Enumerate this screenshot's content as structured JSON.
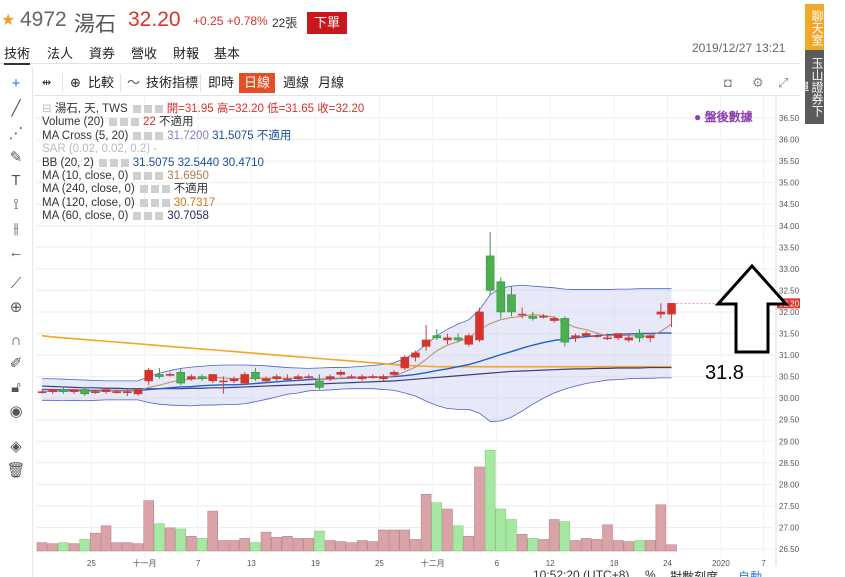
{
  "header": {
    "code": "4972",
    "name": "湯石",
    "price": "32.20",
    "change": "+0.25 +0.78%",
    "volume": "22張",
    "order_button": "下單",
    "datetime": "2019/12/27 13:21"
  },
  "nav": [
    "技術",
    "法人",
    "資券",
    "營收",
    "財報",
    "基本"
  ],
  "side_tabs": {
    "chat": "聊天室",
    "broker": "玉山證券下單"
  },
  "toolbar": {
    "compare": "比較",
    "indicators": "技術指標",
    "periods": [
      "即時",
      "日線",
      "週線",
      "月線"
    ],
    "active_period": "日線"
  },
  "legend": {
    "symbol": "湯石, 天, TWS",
    "ohlc": "開=31.95 高=32.20 低=31.65 收=32.20",
    "volume": {
      "label": "Volume (20)",
      "v1": "22",
      "v2": "不適用"
    },
    "ma_cross": {
      "label": "MA Cross (5, 20)",
      "v1": "31.7200",
      "v2": "31.5075",
      "v3": "不適用"
    },
    "sar": {
      "label": "SAR (0.02, 0.02, 0.2)"
    },
    "bb": {
      "label": "BB (20, 2)",
      "v1": "31.5075",
      "v2": "32.5440",
      "v3": "30.4710"
    },
    "ma10": {
      "label": "MA (10, close, 0)",
      "v": "31.6950"
    },
    "ma240": {
      "label": "MA (240, close, 0)",
      "v": "不適用"
    },
    "ma120": {
      "label": "MA (120, close, 0)",
      "v": "30.7317"
    },
    "ma60": {
      "label": "MA (60, close, 0)",
      "v": "30.7058"
    }
  },
  "after_hours": "盤後數據",
  "annotation": "31.8",
  "footer": {
    "time": "10:52:20 (UTC+8)",
    "pct": "%",
    "log": "對數刻度",
    "auto": "自動"
  },
  "chart_data": {
    "type": "candlestick",
    "price_axis": [
      "36.50",
      "36.00",
      "35.50",
      "35.00",
      "34.50",
      "34.00",
      "33.50",
      "33.00",
      "32.50",
      "32.00",
      "31.50",
      "31.00",
      "30.50",
      "30.00",
      "29.50",
      "29.00",
      "28.50",
      "28.00",
      "27.50",
      "27.00",
      "26.50"
    ],
    "last_price_label": "32.20",
    "x_ticks": [
      "25",
      "十一月",
      "7",
      "13",
      "19",
      "25",
      "十二月",
      "6",
      "12",
      "18",
      "24",
      "2020",
      "7"
    ],
    "candles": [
      {
        "o": 30.15,
        "h": 30.2,
        "l": 30.1,
        "c": 30.15,
        "v": 0.4
      },
      {
        "o": 30.15,
        "h": 30.2,
        "l": 30.1,
        "c": 30.2,
        "v": 0.35
      },
      {
        "o": 30.2,
        "h": 30.25,
        "l": 30.1,
        "c": 30.15,
        "v": 0.4
      },
      {
        "o": 30.15,
        "h": 30.2,
        "l": 30.1,
        "c": 30.2,
        "v": 0.35
      },
      {
        "o": 30.2,
        "h": 30.25,
        "l": 30.05,
        "c": 30.1,
        "v": 0.55
      },
      {
        "o": 30.15,
        "h": 30.2,
        "l": 30.1,
        "c": 30.15,
        "v": 0.85
      },
      {
        "o": 30.15,
        "h": 30.2,
        "l": 30.1,
        "c": 30.2,
        "v": 1.2
      },
      {
        "o": 30.15,
        "h": 30.2,
        "l": 30.1,
        "c": 30.15,
        "v": 0.4
      },
      {
        "o": 30.15,
        "h": 30.2,
        "l": 30.05,
        "c": 30.15,
        "v": 0.4
      },
      {
        "o": 30.1,
        "h": 30.2,
        "l": 30.05,
        "c": 30.2,
        "v": 0.35
      },
      {
        "o": 30.4,
        "h": 30.7,
        "l": 30.3,
        "c": 30.65,
        "v": 2.4
      },
      {
        "o": 30.55,
        "h": 30.7,
        "l": 30.45,
        "c": 30.5,
        "v": 1.3
      },
      {
        "o": 30.55,
        "h": 30.6,
        "l": 30.5,
        "c": 30.55,
        "v": 1.1
      },
      {
        "o": 30.6,
        "h": 30.7,
        "l": 30.3,
        "c": 30.35,
        "v": 1.05
      },
      {
        "o": 30.45,
        "h": 30.55,
        "l": 30.4,
        "c": 30.5,
        "v": 0.7
      },
      {
        "o": 30.5,
        "h": 30.55,
        "l": 30.4,
        "c": 30.45,
        "v": 0.6
      },
      {
        "o": 30.4,
        "h": 30.55,
        "l": 30.35,
        "c": 30.55,
        "v": 1.9
      },
      {
        "o": 30.4,
        "h": 30.5,
        "l": 30.1,
        "c": 30.4,
        "v": 0.5
      },
      {
        "o": 30.4,
        "h": 30.5,
        "l": 30.35,
        "c": 30.45,
        "v": 0.5
      },
      {
        "o": 30.35,
        "h": 30.6,
        "l": 30.3,
        "c": 30.55,
        "v": 0.6
      },
      {
        "o": 30.6,
        "h": 30.7,
        "l": 30.4,
        "c": 30.45,
        "v": 0.4
      },
      {
        "o": 30.4,
        "h": 30.5,
        "l": 30.35,
        "c": 30.45,
        "v": 0.9
      },
      {
        "o": 30.45,
        "h": 30.55,
        "l": 30.4,
        "c": 30.5,
        "v": 0.65
      },
      {
        "o": 30.45,
        "h": 30.55,
        "l": 30.4,
        "c": 30.45,
        "v": 0.7
      },
      {
        "o": 30.45,
        "h": 30.55,
        "l": 30.4,
        "c": 30.5,
        "v": 0.6
      },
      {
        "o": 30.5,
        "h": 30.55,
        "l": 30.45,
        "c": 30.5,
        "v": 0.6
      },
      {
        "o": 30.4,
        "h": 30.55,
        "l": 30.2,
        "c": 30.25,
        "v": 0.95
      },
      {
        "o": 30.45,
        "h": 30.55,
        "l": 30.4,
        "c": 30.5,
        "v": 0.5
      },
      {
        "o": 30.55,
        "h": 30.65,
        "l": 30.5,
        "c": 30.6,
        "v": 0.45
      },
      {
        "o": 30.5,
        "h": 30.55,
        "l": 30.45,
        "c": 30.5,
        "v": 0.4
      },
      {
        "o": 30.45,
        "h": 30.55,
        "l": 30.4,
        "c": 30.5,
        "v": 0.5
      },
      {
        "o": 30.5,
        "h": 30.55,
        "l": 30.45,
        "c": 30.5,
        "v": 0.45
      },
      {
        "o": 30.45,
        "h": 30.55,
        "l": 30.4,
        "c": 30.5,
        "v": 1.0
      },
      {
        "o": 30.55,
        "h": 30.65,
        "l": 30.5,
        "c": 30.6,
        "v": 1.0
      },
      {
        "o": 30.7,
        "h": 31.0,
        "l": 30.65,
        "c": 30.95,
        "v": 1.0
      },
      {
        "o": 30.95,
        "h": 31.1,
        "l": 30.85,
        "c": 31.05,
        "v": 0.55
      },
      {
        "o": 31.2,
        "h": 31.7,
        "l": 31.1,
        "c": 31.35,
        "v": 2.7
      },
      {
        "o": 31.45,
        "h": 31.6,
        "l": 31.35,
        "c": 31.4,
        "v": 2.3
      },
      {
        "o": 31.35,
        "h": 31.5,
        "l": 31.25,
        "c": 31.4,
        "v": 2.0
      },
      {
        "o": 31.4,
        "h": 31.5,
        "l": 31.3,
        "c": 31.35,
        "v": 1.2
      },
      {
        "o": 31.25,
        "h": 31.5,
        "l": 31.2,
        "c": 31.45,
        "v": 0.7
      },
      {
        "o": 31.35,
        "h": 32.1,
        "l": 31.3,
        "c": 32.0,
        "v": 4.0
      },
      {
        "o": 33.3,
        "h": 33.85,
        "l": 32.4,
        "c": 32.5,
        "v": 4.8
      },
      {
        "o": 32.7,
        "h": 32.8,
        "l": 31.85,
        "c": 32.0,
        "v": 2.0
      },
      {
        "o": 32.4,
        "h": 32.6,
        "l": 31.9,
        "c": 32.0,
        "v": 1.5
      },
      {
        "o": 31.95,
        "h": 32.1,
        "l": 31.85,
        "c": 31.95,
        "v": 0.8
      },
      {
        "o": 31.9,
        "h": 32.0,
        "l": 31.8,
        "c": 31.85,
        "v": 0.6
      },
      {
        "o": 31.9,
        "h": 31.95,
        "l": 31.85,
        "c": 31.9,
        "v": 0.55
      },
      {
        "o": 31.8,
        "h": 31.9,
        "l": 31.75,
        "c": 31.85,
        "v": 1.5
      },
      {
        "o": 31.85,
        "h": 31.9,
        "l": 31.2,
        "c": 31.3,
        "v": 1.4
      },
      {
        "o": 31.4,
        "h": 31.5,
        "l": 31.3,
        "c": 31.45,
        "v": 0.5
      },
      {
        "o": 31.45,
        "h": 31.55,
        "l": 31.4,
        "c": 31.5,
        "v": 0.6
      },
      {
        "o": 31.45,
        "h": 31.5,
        "l": 31.4,
        "c": 31.45,
        "v": 0.55
      },
      {
        "o": 31.4,
        "h": 31.5,
        "l": 31.35,
        "c": 31.4,
        "v": 1.25
      },
      {
        "o": 31.4,
        "h": 31.5,
        "l": 31.35,
        "c": 31.5,
        "v": 0.5
      },
      {
        "o": 31.35,
        "h": 31.5,
        "l": 31.3,
        "c": 31.4,
        "v": 0.45
      },
      {
        "o": 31.5,
        "h": 31.6,
        "l": 31.3,
        "c": 31.4,
        "v": 0.5
      },
      {
        "o": 31.4,
        "h": 31.5,
        "l": 31.3,
        "c": 31.45,
        "v": 0.5
      },
      {
        "o": 31.95,
        "h": 32.2,
        "l": 31.85,
        "c": 32.0,
        "v": 2.2
      },
      {
        "o": 31.95,
        "h": 32.2,
        "l": 31.65,
        "c": 32.2,
        "v": 0.3
      }
    ],
    "ma5": [
      30.15,
      30.16,
      30.16,
      30.17,
      30.16,
      30.16,
      30.17,
      30.17,
      30.17,
      30.17,
      30.25,
      30.3,
      30.37,
      30.42,
      30.44,
      30.46,
      30.48,
      30.47,
      30.45,
      30.46,
      30.47,
      30.46,
      30.47,
      30.46,
      30.46,
      30.48,
      30.44,
      30.45,
      30.47,
      30.48,
      30.48,
      30.5,
      30.49,
      30.52,
      30.61,
      30.72,
      30.9,
      31.1,
      31.23,
      31.31,
      31.4,
      31.58,
      31.73,
      31.82,
      31.87,
      31.9,
      31.94,
      31.92,
      31.88,
      31.75,
      31.64,
      31.59,
      31.51,
      31.44,
      31.46,
      31.45,
      31.44,
      31.43,
      31.55,
      31.72
    ],
    "ma20": [
      30.2,
      30.2,
      30.19,
      30.19,
      30.18,
      30.18,
      30.18,
      30.18,
      30.18,
      30.18,
      30.2,
      30.22,
      30.24,
      30.26,
      30.27,
      30.29,
      30.3,
      30.31,
      30.31,
      30.32,
      30.34,
      30.36,
      30.38,
      30.4,
      30.41,
      30.43,
      30.44,
      30.45,
      30.46,
      30.47,
      30.48,
      30.49,
      30.49,
      30.5,
      30.52,
      30.55,
      30.59,
      30.64,
      30.68,
      30.73,
      30.78,
      30.85,
      30.93,
      31.01,
      31.08,
      31.16,
      31.23,
      31.29,
      31.34,
      31.37,
      31.4,
      31.43,
      31.45,
      31.47,
      31.48,
      31.49,
      31.5,
      31.5,
      31.51,
      31.51
    ],
    "bb_upper": [
      30.45,
      30.45,
      30.44,
      30.43,
      30.42,
      30.41,
      30.4,
      30.4,
      30.4,
      30.4,
      30.5,
      30.58,
      30.64,
      30.69,
      30.72,
      30.74,
      30.76,
      30.77,
      30.77,
      30.77,
      30.76,
      30.75,
      30.73,
      30.71,
      30.7,
      30.69,
      30.7,
      30.71,
      30.71,
      30.72,
      30.74,
      30.76,
      30.78,
      30.82,
      30.92,
      31.05,
      31.25,
      31.45,
      31.6,
      31.72,
      31.82,
      32.05,
      32.4,
      32.55,
      32.6,
      32.62,
      32.6,
      32.58,
      32.56,
      32.53,
      32.52,
      32.52,
      32.52,
      32.52,
      32.53,
      32.53,
      32.54,
      32.54,
      32.54,
      32.54
    ],
    "bb_lower": [
      29.95,
      29.95,
      29.94,
      29.95,
      29.94,
      29.95,
      29.96,
      29.96,
      29.96,
      29.96,
      29.9,
      29.86,
      29.84,
      29.83,
      29.82,
      29.84,
      29.84,
      29.85,
      29.85,
      29.87,
      29.92,
      29.97,
      30.03,
      30.09,
      30.12,
      30.17,
      30.18,
      30.19,
      30.21,
      30.22,
      30.22,
      30.22,
      30.2,
      30.18,
      30.12,
      30.05,
      29.93,
      29.83,
      29.76,
      29.74,
      29.74,
      29.65,
      29.46,
      29.47,
      29.56,
      29.7,
      29.86,
      30.0,
      30.12,
      30.21,
      30.28,
      30.34,
      30.38,
      30.42,
      30.43,
      30.45,
      30.46,
      30.46,
      30.47,
      30.47
    ],
    "ma60": [
      30.28,
      30.27,
      30.26,
      30.25,
      30.24,
      30.24,
      30.23,
      30.23,
      30.22,
      30.22,
      30.22,
      30.22,
      30.22,
      30.22,
      30.23,
      30.23,
      30.24,
      30.24,
      30.25,
      30.26,
      30.27,
      30.28,
      30.29,
      30.3,
      30.31,
      30.32,
      30.33,
      30.34,
      30.35,
      30.36,
      30.37,
      30.38,
      30.39,
      30.4,
      30.42,
      30.44,
      30.46,
      30.48,
      30.5,
      30.52,
      30.54,
      30.56,
      30.58,
      30.6,
      30.62,
      30.63,
      30.64,
      30.65,
      30.66,
      30.67,
      30.68,
      30.68,
      30.69,
      30.69,
      30.7,
      30.7,
      30.7,
      30.71,
      30.71,
      30.71
    ],
    "ma120": [
      31.45,
      31.42,
      31.4,
      31.38,
      31.36,
      31.34,
      31.32,
      31.3,
      31.28,
      31.26,
      31.24,
      31.22,
      31.2,
      31.18,
      31.16,
      31.14,
      31.12,
      31.1,
      31.08,
      31.06,
      31.04,
      31.02,
      31.0,
      30.98,
      30.96,
      30.94,
      30.92,
      30.9,
      30.88,
      30.86,
      30.84,
      30.82,
      30.8,
      30.78,
      30.76,
      30.75,
      30.74,
      30.73,
      30.73,
      30.73,
      30.73,
      30.73,
      30.73,
      30.73,
      30.73,
      30.73,
      30.73,
      30.73,
      30.73,
      30.73,
      30.73,
      30.73,
      30.73,
      30.73,
      30.73,
      30.73,
      30.73,
      30.73,
      30.73,
      30.73
    ]
  }
}
